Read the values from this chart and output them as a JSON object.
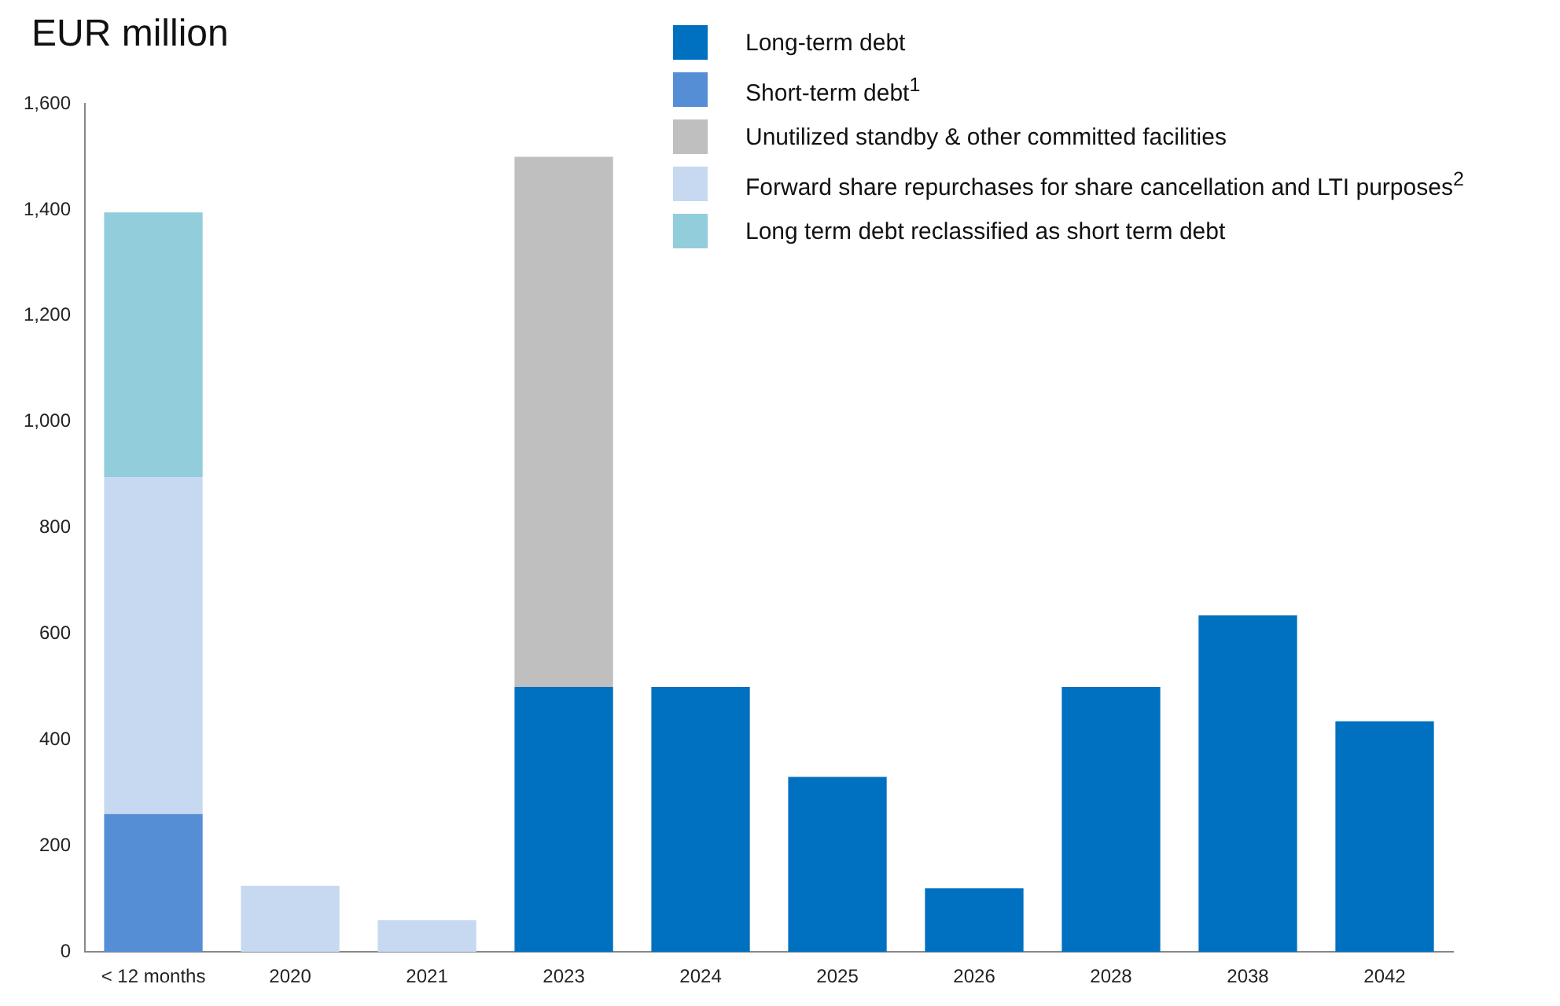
{
  "chart_data": {
    "type": "bar",
    "title": "EUR million",
    "stacked": true,
    "legend": "top right",
    "grid": false,
    "categories": [
      "< 12 months",
      "2020",
      "2021",
      "2023",
      "2024",
      "2025",
      "2026",
      "2028",
      "2038",
      "2042"
    ],
    "series": [
      {
        "name": "Long-term debt",
        "color": "#0070c0",
        "values": [
          null,
          null,
          null,
          500,
          500,
          330,
          120,
          500,
          635,
          435
        ]
      },
      {
        "name": "Short-term debt$^{1}$",
        "color": "#558ed5",
        "values": [
          260,
          null,
          null,
          null,
          null,
          null,
          null,
          null,
          null,
          null
        ]
      },
      {
        "name": "Unutilized standby & other committed facilities",
        "color": "#bfbfbf",
        "values": [
          null,
          null,
          null,
          1000,
          null,
          null,
          null,
          null,
          null,
          null
        ]
      },
      {
        "name": "Forward share repurchases for share cancellation and LTI purposes$^{2}$",
        "color": "#c6d9f1",
        "values": [
          635,
          125,
          60,
          null,
          null,
          null,
          null,
          null,
          null,
          null
        ]
      },
      {
        "name": "Long term debt reclassified as short term debt",
        "color": "#92cddc",
        "values": [
          500,
          null,
          null,
          null,
          null,
          null,
          null,
          null,
          null,
          null
        ]
      }
    ],
    "ylim": [
      0,
      1600
    ],
    "yticks": [
      0,
      200,
      400,
      600,
      800,
      {
        "value": 1000,
        "label": "1,000"
      },
      {
        "value": 1200,
        "label": "1,200"
      },
      {
        "value": 1400,
        "label": "1,400"
      },
      {
        "value": 1600,
        "label": "1,600"
      }
    ]
  }
}
